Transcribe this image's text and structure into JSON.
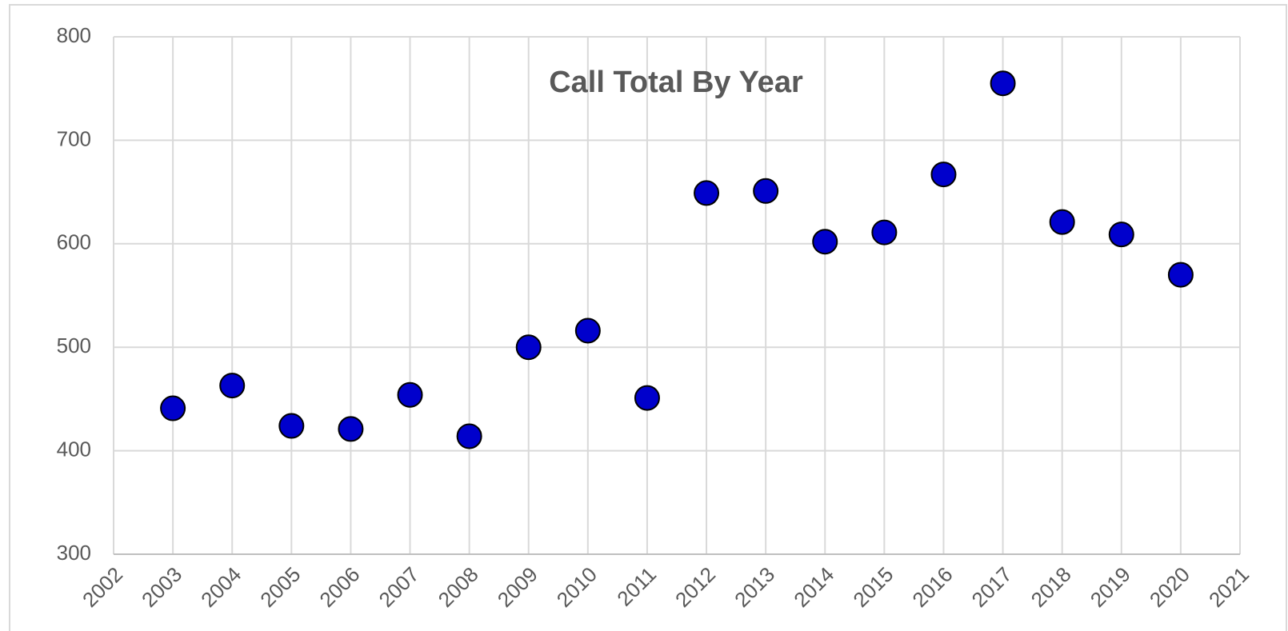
{
  "chart_data": {
    "type": "scatter",
    "title": "Call Total By Year",
    "x": [
      2003,
      2004,
      2005,
      2006,
      2007,
      2008,
      2009,
      2010,
      2011,
      2012,
      2013,
      2014,
      2015,
      2016,
      2017,
      2018,
      2019,
      2020
    ],
    "values": [
      441,
      463,
      424,
      421,
      454,
      414,
      500,
      516,
      451,
      649,
      651,
      602,
      611,
      667,
      755,
      621,
      609,
      570
    ],
    "color": "#0000cc",
    "xlim": [
      2002,
      2021
    ],
    "xticks": [
      2002,
      2003,
      2004,
      2005,
      2006,
      2007,
      2008,
      2009,
      2010,
      2011,
      2012,
      2013,
      2014,
      2015,
      2016,
      2017,
      2018,
      2019,
      2020,
      2021
    ],
    "ylim": [
      300,
      800
    ],
    "yticks": [
      300,
      400,
      500,
      600,
      700,
      800
    ],
    "grid": true
  }
}
